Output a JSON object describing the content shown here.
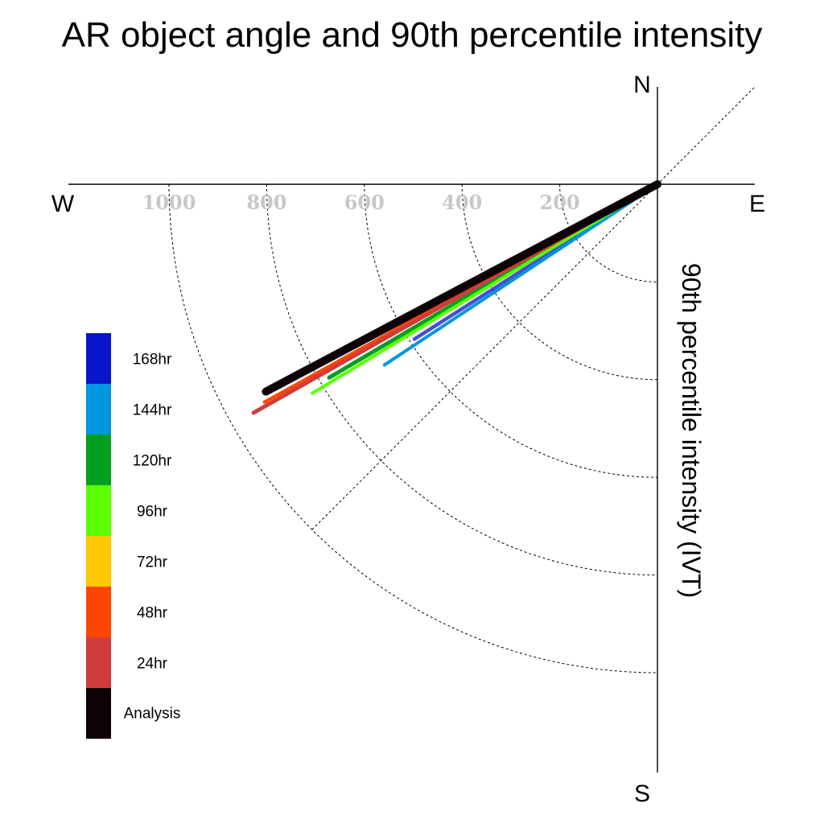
{
  "chart_data": {
    "type": "polar-line",
    "title": "AR object angle and 90th percentile intensity",
    "radial_label": "90th percentile intensity (IVT)",
    "compass": {
      "n": "N",
      "s": "S",
      "e": "E",
      "w": "W"
    },
    "r_ticks": [
      200,
      400,
      600,
      800,
      1000
    ],
    "r_tick_labels": [
      "200",
      "400",
      "600",
      "800",
      "1000"
    ],
    "r_max": 1000,
    "guide_angle_deg": 45,
    "series": [
      {
        "name": "168hr",
        "color": "#0a14c8",
        "direction_deg": 237.5,
        "intensity": 590
      },
      {
        "name": "144hr",
        "color": "#0096dc",
        "direction_deg": 236.5,
        "intensity": 670
      },
      {
        "name": "120hr",
        "color": "#00a01e",
        "direction_deg": 239.5,
        "intensity": 780
      },
      {
        "name": "96hr",
        "color": "#5aff00",
        "direction_deg": 238.8,
        "intensity": 826
      },
      {
        "name": "72hr",
        "color": "#ffc800",
        "direction_deg": 240.8,
        "intensity": 916
      },
      {
        "name": "48hr",
        "color": "#ff4600",
        "direction_deg": 241.0,
        "intensity": 920
      },
      {
        "name": "24hr",
        "color": "#d03c3c",
        "direction_deg": 240.5,
        "intensity": 950
      },
      {
        "name": "Analysis",
        "color": "#0d0206",
        "direction_deg": 242.1,
        "intensity": 907
      }
    ]
  }
}
